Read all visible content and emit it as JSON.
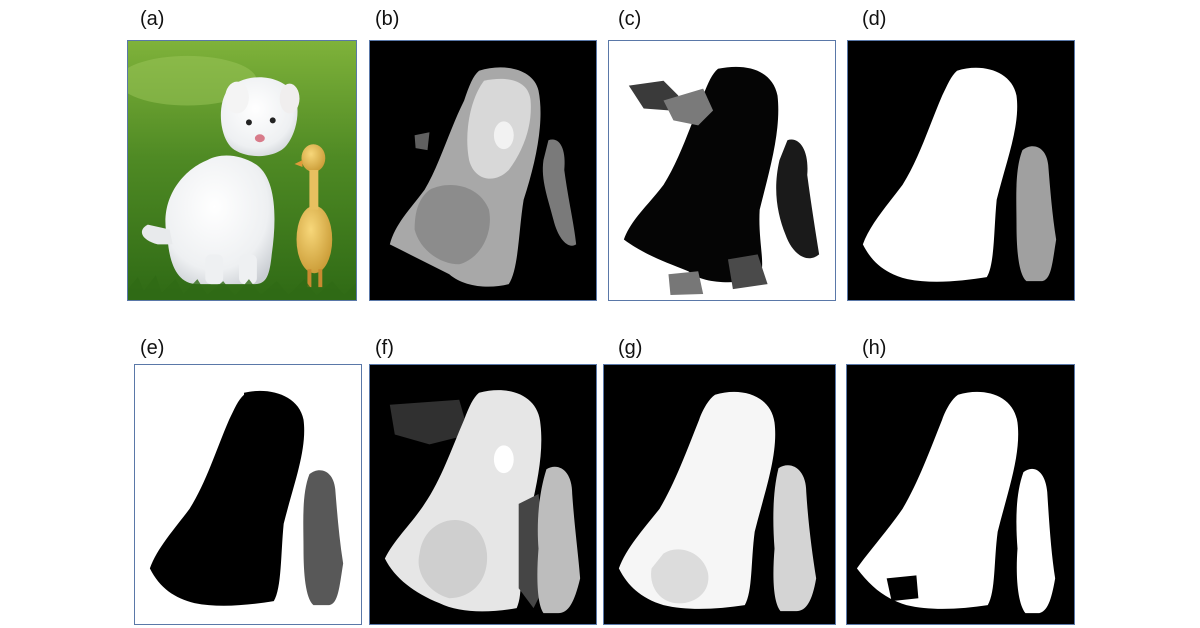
{
  "figure": {
    "panels": [
      {
        "label": "(a)",
        "content": "photo",
        "background": "#5f9a2e"
      },
      {
        "label": "(b)",
        "content": "saliency-map",
        "background": "#000000"
      },
      {
        "label": "(c)",
        "content": "inverted-saliency-map",
        "background": "#ffffff"
      },
      {
        "label": "(d)",
        "content": "saliency-map",
        "background": "#000000"
      },
      {
        "label": "(e)",
        "content": "inverted-saliency-map",
        "background": "#ffffff"
      },
      {
        "label": "(f)",
        "content": "saliency-map",
        "background": "#000000"
      },
      {
        "label": "(g)",
        "content": "saliency-map",
        "background": "#000000"
      },
      {
        "label": "(h)",
        "content": "saliency-map",
        "background": "#000000"
      }
    ]
  }
}
